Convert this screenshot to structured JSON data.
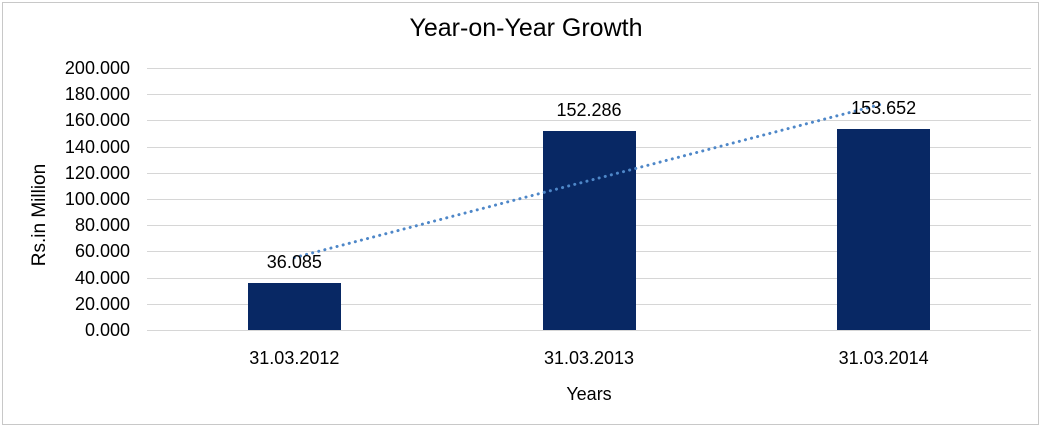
{
  "chart_data": {
    "type": "bar",
    "title": "Year-on-Year Growth",
    "xlabel": "Years",
    "ylabel": "Rs.in Million",
    "categories": [
      "31.03.2012",
      "31.03.2013",
      "31.03.2014"
    ],
    "values": [
      36.085,
      152.286,
      153.652
    ],
    "data_labels": [
      "36.085",
      "152.286",
      "153.652"
    ],
    "ylim": [
      0,
      200
    ],
    "ytick_step": 20,
    "ytick_labels": [
      "0.000",
      "20.000",
      "40.000",
      "60.000",
      "80.000",
      "100.000",
      "120.000",
      "140.000",
      "160.000",
      "180.000",
      "200.000"
    ],
    "grid": true,
    "legend": false,
    "trendline": {
      "type": "linear",
      "style": "dotted",
      "color": "#4E87C8"
    },
    "colors": {
      "bar": "#082864",
      "gridline": "#D6D6D6",
      "axis_line": "#D6D6D6",
      "text": "#000000",
      "frame_border": "#C8C8C8",
      "background": "#FFFFFF"
    }
  }
}
